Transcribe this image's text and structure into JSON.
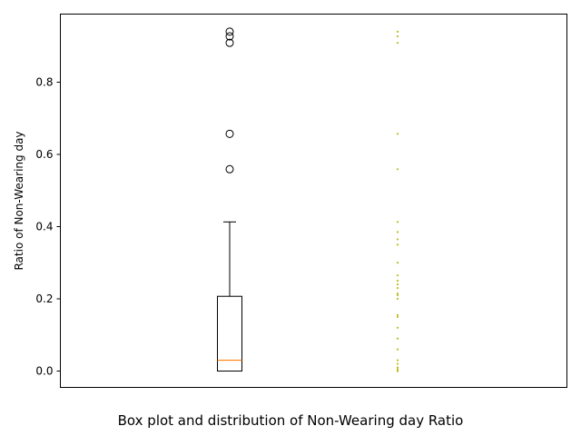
{
  "chart_data": {
    "type": "box",
    "title": "",
    "xlabel": "",
    "ylabel": "Ratio of Non-Wearing day",
    "caption": "Box plot and distribution of Non-Wearing day Ratio",
    "ylim": [
      -0.048,
      0.985
    ],
    "yticks": [
      0.0,
      0.2,
      0.4,
      0.6,
      0.8
    ],
    "ytick_labels": [
      "0.0",
      "0.2",
      "0.4",
      "0.6",
      "0.8"
    ],
    "xticks_visible": false,
    "grid": false,
    "box": {
      "x": 1,
      "q1": 0.0,
      "median": 0.03,
      "q3": 0.207,
      "whisker_low": 0.0,
      "whisker_high": 0.413,
      "outliers": [
        0.559,
        0.657,
        0.909,
        0.927,
        0.94
      ],
      "box_color": "#000000",
      "median_color": "#ff7f0e"
    },
    "distribution": {
      "x": 2,
      "color": "#bcbd22",
      "values": [
        0.0,
        0.0,
        0.0,
        0.005,
        0.01,
        0.02,
        0.03,
        0.06,
        0.09,
        0.12,
        0.15,
        0.155,
        0.2,
        0.21,
        0.215,
        0.23,
        0.24,
        0.25,
        0.265,
        0.3,
        0.35,
        0.365,
        0.385,
        0.413,
        0.559,
        0.657,
        0.909,
        0.927,
        0.94
      ]
    }
  }
}
